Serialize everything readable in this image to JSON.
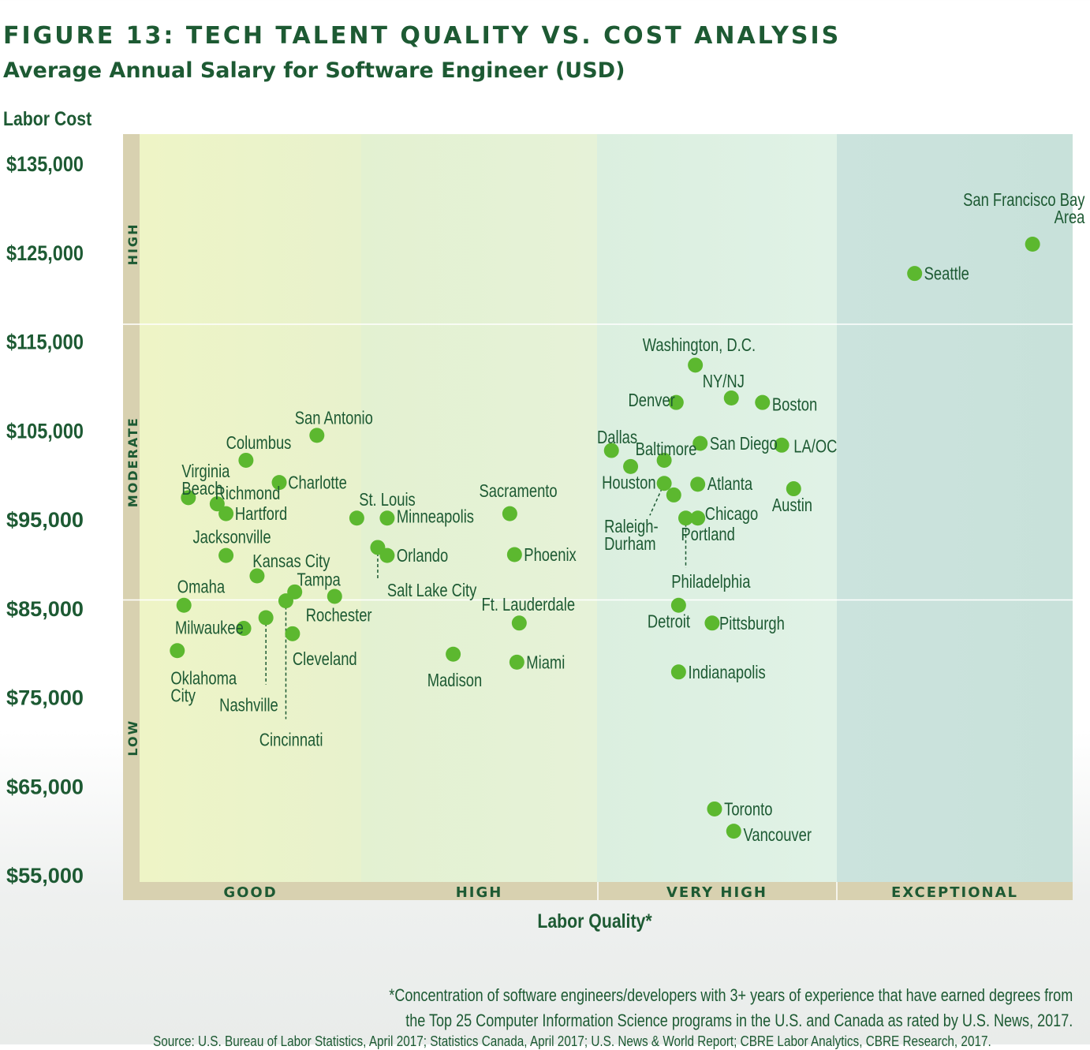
{
  "header": {
    "title": "FIGURE 13: TECH TALENT QUALITY VS. COST ANALYSIS",
    "subtitle": "Average Annual Salary for Software Engineer (USD)"
  },
  "footer": {
    "footnote_line1": "*Concentration of software engineers/developers with 3+ years of experience that have earned degrees from",
    "footnote_line2": "the Top 25 Computer Information Science programs in the U.S. and Canada as rated by U.S. News, 2017.",
    "source": "Source: U.S. Bureau of Labor Statistics, April 2017; Statistics Canada, April 2017; U.S. News & World Report; CBRE Labor Analytics, CBRE Research, 2017."
  },
  "colors": {
    "title": "#1d5a33",
    "point": "#5cb82f",
    "axis_band": "#d8d1b0",
    "quadrant_good": "#ecf3c9",
    "quadrant_high": "#e2f1d4",
    "quadrant_very_high": "#daefe3",
    "quadrant_exceptional": "#cae3dc"
  },
  "chart_data": {
    "type": "scatter",
    "ylabel": "Labor Cost",
    "xlabel": "Labor Quality*",
    "ylim": [
      55000,
      135000
    ],
    "yticks": [
      {
        "value": 135000,
        "label": "$135,000"
      },
      {
        "value": 125000,
        "label": "$125,000"
      },
      {
        "value": 115000,
        "label": "$115,000"
      },
      {
        "value": 105000,
        "label": "$105,000"
      },
      {
        "value": 95000,
        "label": "$95,000"
      },
      {
        "value": 85000,
        "label": "$85,000"
      },
      {
        "value": 75000,
        "label": "$75,000"
      },
      {
        "value": 65000,
        "label": "$65,000"
      },
      {
        "value": 55000,
        "label": "$55,000"
      }
    ],
    "x_categories": [
      "GOOD",
      "HIGH",
      "VERY HIGH",
      "EXCEPTIONAL"
    ],
    "y_bands": [
      {
        "label": "HIGH",
        "from": 117000,
        "to": 135000
      },
      {
        "label": "MODERATE",
        "from": 86000,
        "to": 117000
      },
      {
        "label": "LOW",
        "from": 55000,
        "to": 86000
      }
    ],
    "x_range": [
      0,
      4
    ],
    "points": [
      {
        "label": "San Francisco Bay Area",
        "x": 3.83,
        "y": 126000,
        "lx": 3.59,
        "ly": 131000
      },
      {
        "label": "Seattle",
        "x": 3.33,
        "y": 122700,
        "lx": 3.37,
        "ly": 122700
      },
      {
        "label": "Washington, D.C.",
        "x": 2.41,
        "y": 112400,
        "lx": 2.19,
        "ly": 114700
      },
      {
        "label": "NY/NJ",
        "x": 2.56,
        "y": 108700,
        "lx": 2.44,
        "ly": 110600
      },
      {
        "label": "Denver",
        "x": 2.33,
        "y": 108200,
        "lx": 2.13,
        "ly": 108500
      },
      {
        "label": "Boston",
        "x": 2.69,
        "y": 108200,
        "lx": 2.73,
        "ly": 108000
      },
      {
        "label": "Dallas",
        "x": 2.06,
        "y": 102800,
        "lx": 2.0,
        "ly": 104300
      },
      {
        "label": "Baltimore",
        "x": 2.28,
        "y": 101700,
        "lx": 2.16,
        "ly": 103000
      },
      {
        "label": "San Diego",
        "x": 2.43,
        "y": 103600,
        "lx": 2.47,
        "ly": 103600
      },
      {
        "label": "LA/OC",
        "x": 2.77,
        "y": 103400,
        "lx": 2.82,
        "ly": 103300
      },
      {
        "label": "Houston",
        "x": 2.14,
        "y": 101000,
        "lx": 2.02,
        "ly": 99200
      },
      {
        "label": "Atlanta",
        "x": 2.42,
        "y": 99000,
        "lx": 2.46,
        "ly": 99100
      },
      {
        "label": "Austin",
        "x": 2.82,
        "y": 98500,
        "lx": 2.73,
        "ly": 96700
      },
      {
        "label": "Raleigh-Durham",
        "x": 2.28,
        "y": 99100,
        "lx": 2.03,
        "ly": 94300
      },
      {
        "label": "Chicago",
        "x": 2.32,
        "y": 97800,
        "lx": 2.45,
        "ly": 95700
      },
      {
        "label": "Portland",
        "x": 2.37,
        "y": 95200,
        "lx": 2.35,
        "ly": 93400
      },
      {
        "label": "Philadelphia",
        "x": 2.42,
        "y": 95200,
        "lx": 2.31,
        "ly": 88100
      },
      {
        "label": "Detroit",
        "x": 2.34,
        "y": 85400,
        "lx": 2.21,
        "ly": 83600
      },
      {
        "label": "Pittsburgh",
        "x": 2.48,
        "y": 83400,
        "lx": 2.51,
        "ly": 83400
      },
      {
        "label": "Indianapolis",
        "x": 2.34,
        "y": 77900,
        "lx": 2.38,
        "ly": 77900
      },
      {
        "label": "Toronto",
        "x": 2.49,
        "y": 62500,
        "lx": 2.53,
        "ly": 62500
      },
      {
        "label": "Vancouver",
        "x": 2.57,
        "y": 60000,
        "lx": 2.61,
        "ly": 59600
      },
      {
        "label": "Sacramento",
        "x": 1.63,
        "y": 95700,
        "lx": 1.5,
        "ly": 98300
      },
      {
        "label": "Phoenix",
        "x": 1.65,
        "y": 91100,
        "lx": 1.69,
        "ly": 91100
      },
      {
        "label": "Ft. Lauderdale",
        "x": 1.67,
        "y": 83400,
        "lx": 1.51,
        "ly": 85500
      },
      {
        "label": "Miami",
        "x": 1.66,
        "y": 79000,
        "lx": 1.7,
        "ly": 79000
      },
      {
        "label": "Madison",
        "x": 1.39,
        "y": 79900,
        "lx": 1.28,
        "ly": 77000
      },
      {
        "label": "St. Louis",
        "x": 0.98,
        "y": 95200,
        "lx": 0.99,
        "ly": 97300
      },
      {
        "label": "Minneapolis",
        "x": 1.11,
        "y": 95200,
        "lx": 1.15,
        "ly": 95400
      },
      {
        "label": "Orlando",
        "x": 1.11,
        "y": 91000,
        "lx": 1.15,
        "ly": 91000
      },
      {
        "label": "Salt Lake City",
        "x": 1.07,
        "y": 91900,
        "lx": 1.11,
        "ly": 87100
      },
      {
        "label": "San Antonio",
        "x": 0.8,
        "y": 104500,
        "lx": 0.7,
        "ly": 106500
      },
      {
        "label": "Columbus",
        "x": 0.48,
        "y": 101700,
        "lx": 0.39,
        "ly": 103700
      },
      {
        "label": "Virginia Beach",
        "x": 0.22,
        "y": 97500,
        "lx": 0.19,
        "ly": 100500
      },
      {
        "label": "Charlotte",
        "x": 0.63,
        "y": 99200,
        "lx": 0.67,
        "ly": 99200
      },
      {
        "label": "Richmond",
        "x": 0.35,
        "y": 96800,
        "lx": 0.34,
        "ly": 98000
      },
      {
        "label": "Hartford",
        "x": 0.39,
        "y": 95700,
        "lx": 0.43,
        "ly": 95700
      },
      {
        "label": "Jacksonville",
        "x": 0.39,
        "y": 91000,
        "lx": 0.24,
        "ly": 93100
      },
      {
        "label": "Kansas City",
        "x": 0.53,
        "y": 88700,
        "lx": 0.51,
        "ly": 90400
      },
      {
        "label": "Tampa",
        "x": 0.7,
        "y": 86900,
        "lx": 0.71,
        "ly": 88300
      },
      {
        "label": "Rochester",
        "x": 0.88,
        "y": 86400,
        "lx": 0.75,
        "ly": 84300
      },
      {
        "label": "Omaha",
        "x": 0.2,
        "y": 85400,
        "lx": 0.17,
        "ly": 87500
      },
      {
        "label": "Milwaukee",
        "x": 0.47,
        "y": 82800,
        "lx": 0.16,
        "ly": 82900
      },
      {
        "label": "Nashville",
        "x": 0.57,
        "y": 84000,
        "lx": 0.36,
        "ly": 74200
      },
      {
        "label": "Cincinnati",
        "x": 0.66,
        "y": 85900,
        "lx": 0.54,
        "ly": 70300
      },
      {
        "label": "Cleveland",
        "x": 0.69,
        "y": 82200,
        "lx": 0.69,
        "ly": 79400
      },
      {
        "label": "Oklahoma City",
        "x": 0.17,
        "y": 80300,
        "lx": 0.14,
        "ly": 77200
      }
    ],
    "leader_lines": [
      {
        "from_x": 1.07,
        "from_y": 91900,
        "to_x": 1.07,
        "to_y": 88300
      },
      {
        "from_x": 2.28,
        "from_y": 99100,
        "to_x": 2.22,
        "to_y": 95500
      },
      {
        "from_x": 2.37,
        "from_y": 95200,
        "to_x": 2.37,
        "to_y": 89600
      },
      {
        "from_x": 0.57,
        "from_y": 84000,
        "to_x": 0.57,
        "to_y": 76500
      },
      {
        "from_x": 0.66,
        "from_y": 85900,
        "to_x": 0.66,
        "to_y": 72600
      }
    ]
  }
}
